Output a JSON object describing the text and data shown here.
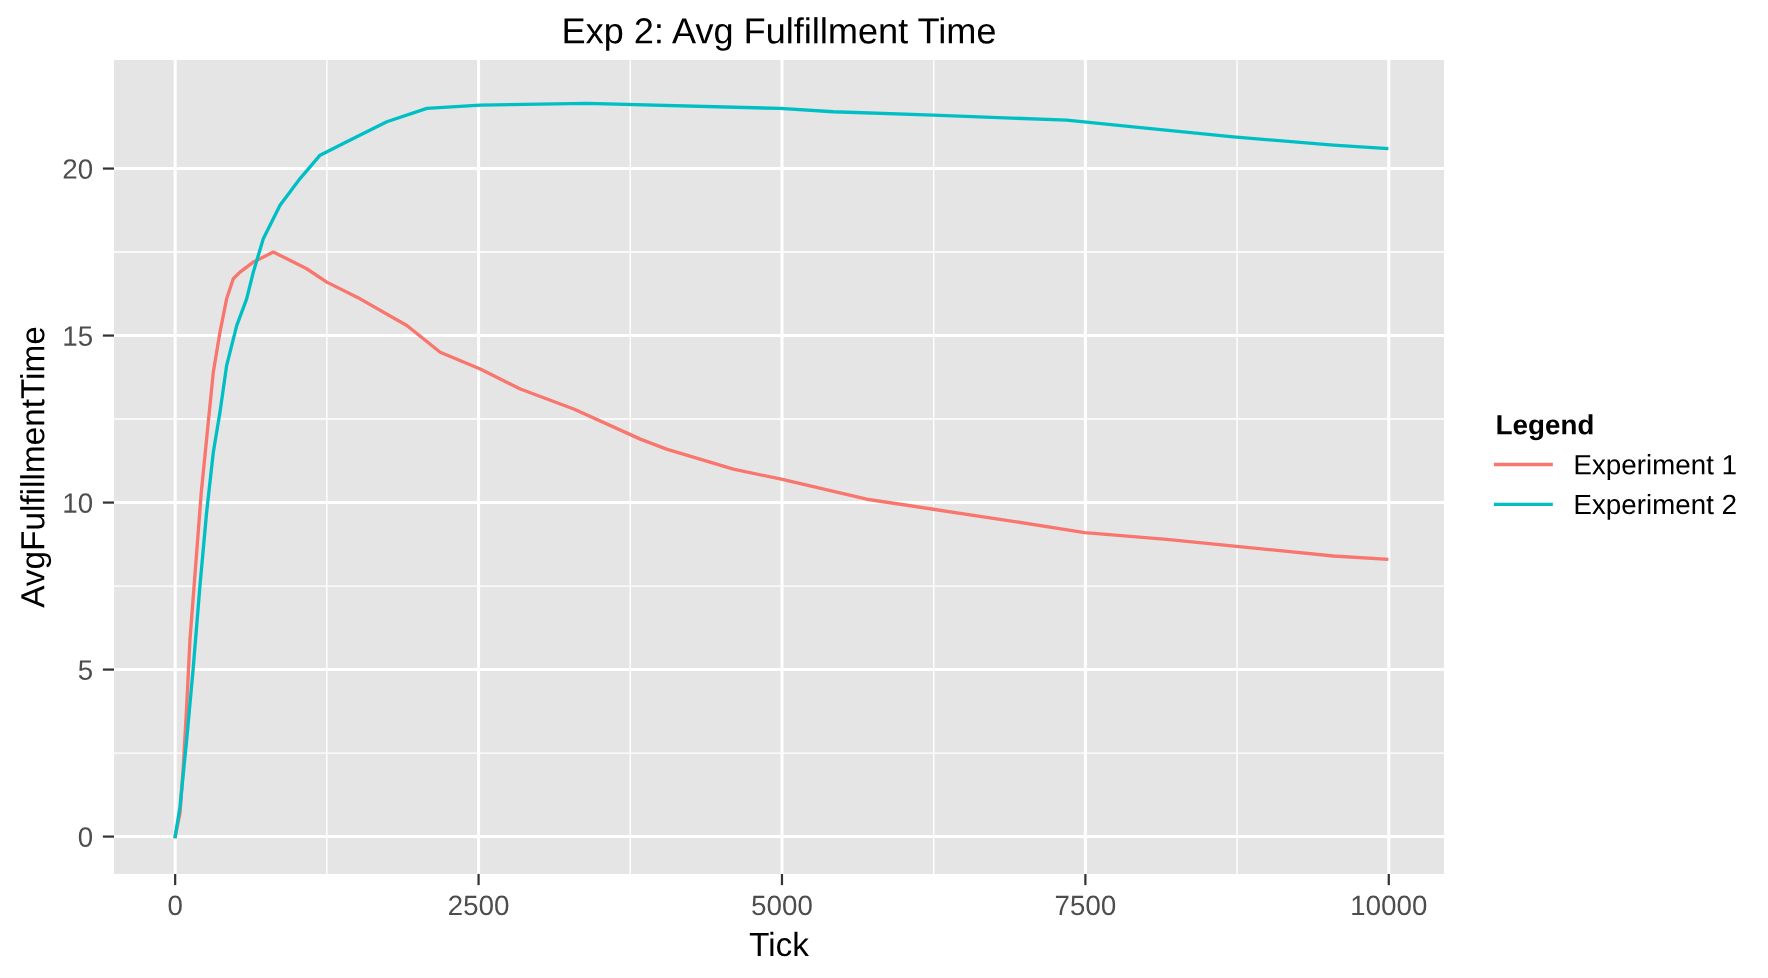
{
  "chart_data": {
    "type": "line",
    "title": "Exp 2: Avg Fulfillment Time",
    "xlabel": "Tick",
    "ylabel": "AvgFulfillmentTime",
    "legend_title": "Legend",
    "xlim": [
      -504,
      10455
    ],
    "ylim": [
      -1.12,
      23.25
    ],
    "xticks": [
      0,
      2500,
      5000,
      7500,
      10000
    ],
    "yticks": [
      0,
      5,
      10,
      15,
      20
    ],
    "grid": true,
    "legend": "right",
    "line_style": "solid",
    "series": [
      {
        "name": "Experiment 1",
        "color": "#f8766d",
        "x": [
          0,
          40,
          67,
          95,
          122,
          177,
          215,
          259,
          314,
          369,
          424,
          479,
          534,
          644,
          809,
          974,
          1084,
          1249,
          1524,
          1909,
          2184,
          2514,
          2844,
          3284,
          3833,
          4049,
          4599,
          4994,
          5698,
          6247,
          6796,
          7494,
          8170,
          8994,
          9543,
          9983
        ],
        "values": [
          0,
          0.7,
          2.1,
          3.9,
          5.9,
          8.5,
          10.3,
          11.9,
          13.9,
          15.1,
          16.1,
          16.7,
          16.9,
          17.2,
          17.5,
          17.2,
          17.0,
          16.6,
          16.1,
          15.3,
          14.5,
          14.0,
          13.4,
          12.8,
          11.9,
          11.6,
          11.0,
          10.7,
          10.1,
          9.8,
          9.5,
          9.1,
          8.9,
          8.6,
          8.4,
          8.3
        ]
      },
      {
        "name": "Experiment 2",
        "color": "#00bfc4",
        "x": [
          0,
          40,
          95,
          150,
          204,
          259,
          314,
          369,
          424,
          507,
          589,
          644,
          726,
          864,
          1029,
          1194,
          1414,
          1744,
          2074,
          2514,
          3393,
          4983,
          5423,
          6247,
          7346,
          7895,
          8719,
          9543,
          9983
        ],
        "values": [
          0,
          0.9,
          2.9,
          5.1,
          7.5,
          9.7,
          11.5,
          12.7,
          14.1,
          15.3,
          16.1,
          16.9,
          17.9,
          18.9,
          19.7,
          20.4,
          20.8,
          21.4,
          21.8,
          21.9,
          21.95,
          21.8,
          21.7,
          21.6,
          21.45,
          21.25,
          20.95,
          20.7,
          20.6
        ]
      }
    ]
  }
}
